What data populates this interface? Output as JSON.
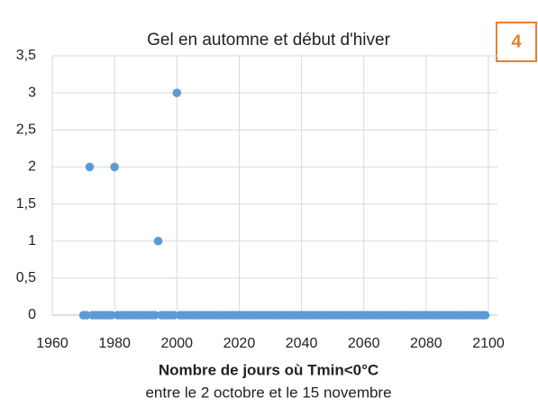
{
  "chart_data": {
    "type": "scatter",
    "title": "Gel en automne et début d'hiver",
    "badge": "4",
    "x_label": "Nombre de jours où Tmin<0°C",
    "subtitle": "entre le 2 octobre et le 15 novembre",
    "color": "#5b9bd5",
    "grid": true,
    "xlim": [
      1960,
      2100
    ],
    "xticks": [
      1960,
      1980,
      2000,
      2020,
      2040,
      2060,
      2080,
      2100
    ],
    "ylim": [
      0,
      3.5
    ],
    "yticks": [
      0,
      {
        "value": 0.5,
        "label": "0,5"
      },
      1,
      {
        "value": 1.5,
        "label": "1,5"
      },
      2,
      {
        "value": 2.5,
        "label": "2,5"
      },
      3,
      {
        "value": 3.5,
        "label": "3,5"
      }
    ],
    "x": [
      1970,
      1971,
      1972,
      1973,
      1974,
      1975,
      1976,
      1977,
      1978,
      1979,
      1980,
      1981,
      1982,
      1983,
      1984,
      1985,
      1986,
      1987,
      1988,
      1989,
      1990,
      1991,
      1992,
      1993,
      1994,
      1995,
      1996,
      1997,
      1998,
      1999,
      2000,
      2001,
      2002,
      2003,
      2004,
      2005,
      2006,
      2007,
      2008,
      2009,
      2010,
      2011,
      2012,
      2013,
      2014,
      2015,
      2016,
      2017,
      2018,
      2019,
      2020,
      2021,
      2022,
      2023,
      2024,
      2025,
      2026,
      2027,
      2028,
      2029,
      2030,
      2031,
      2032,
      2033,
      2034,
      2035,
      2036,
      2037,
      2038,
      2039,
      2040,
      2041,
      2042,
      2043,
      2044,
      2045,
      2046,
      2047,
      2048,
      2049,
      2050,
      2051,
      2052,
      2053,
      2054,
      2055,
      2056,
      2057,
      2058,
      2059,
      2060,
      2061,
      2062,
      2063,
      2064,
      2065,
      2066,
      2067,
      2068,
      2069,
      2070,
      2071,
      2072,
      2073,
      2074,
      2075,
      2076,
      2077,
      2078,
      2079,
      2080,
      2081,
      2082,
      2083,
      2084,
      2085,
      2086,
      2087,
      2088,
      2089,
      2090,
      2091,
      2092,
      2093,
      2094,
      2095,
      2096,
      2097,
      2098,
      2099
    ],
    "values": [
      0,
      0,
      2,
      0,
      0,
      0,
      0,
      0,
      0,
      0,
      2,
      0,
      0,
      0,
      0,
      0,
      0,
      0,
      0,
      0,
      0,
      0,
      0,
      0,
      1,
      0,
      0,
      0,
      0,
      0,
      3,
      0,
      0,
      0,
      0,
      0,
      0,
      0,
      0,
      0,
      0,
      0,
      0,
      0,
      0,
      0,
      0,
      0,
      0,
      0,
      0,
      0,
      0,
      0,
      0,
      0,
      0,
      0,
      0,
      0,
      0,
      0,
      0,
      0,
      0,
      0,
      0,
      0,
      0,
      0,
      0,
      0,
      0,
      0,
      0,
      0,
      0,
      0,
      0,
      0,
      0,
      0,
      0,
      0,
      0,
      0,
      0,
      0,
      0,
      0,
      0,
      0,
      0,
      0,
      0,
      0,
      0,
      0,
      0,
      0,
      0,
      0,
      0,
      0,
      0,
      0,
      0,
      0,
      0,
      0,
      0,
      0,
      0,
      0,
      0,
      0,
      0,
      0,
      0,
      0,
      0,
      0,
      0,
      0,
      0,
      0,
      0,
      0,
      0,
      0
    ]
  }
}
